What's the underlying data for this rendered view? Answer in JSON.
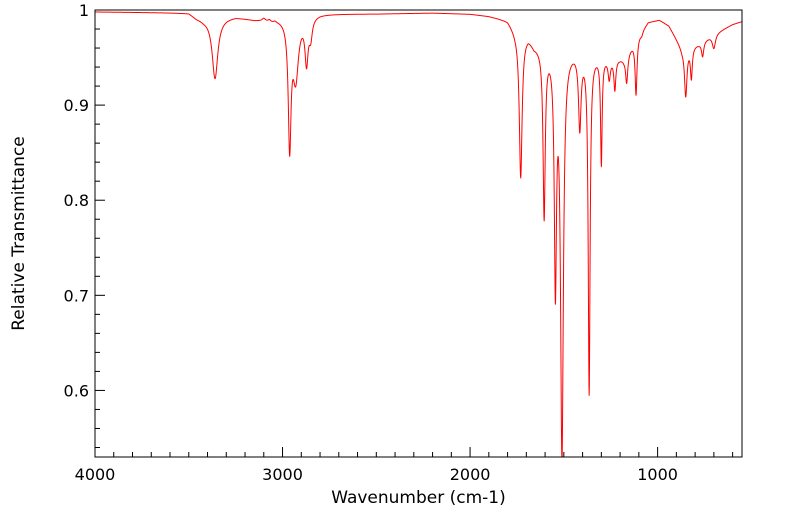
{
  "chart_data": {
    "type": "line",
    "title": "",
    "xlabel": "Wavenumber (cm-1)",
    "ylabel": "Relative Transmittance",
    "xlim": [
      4000,
      550
    ],
    "ylim": [
      0.53,
      1.0
    ],
    "x_reversed": true,
    "grid": false,
    "legend": "none",
    "line_color": "#ff0000",
    "x_ticks": [
      4000,
      3000,
      2000,
      1000
    ],
    "x_tick_labels": [
      "4000",
      "3000",
      "2000",
      "1000"
    ],
    "y_ticks": [
      0.6,
      0.7,
      0.8,
      0.9,
      1.0
    ],
    "y_tick_labels": [
      "0.6",
      "0.7",
      "0.8",
      "0.9",
      "1"
    ],
    "baseline": [
      [
        4000,
        0.998
      ],
      [
        3500,
        0.997
      ],
      [
        3460,
        0.992
      ],
      [
        3420,
        0.99
      ],
      [
        3250,
        0.993
      ],
      [
        3150,
        0.99
      ],
      [
        3060,
        0.99
      ],
      [
        3000,
        0.992
      ],
      [
        2800,
        0.996
      ],
      [
        2500,
        0.996
      ],
      [
        2200,
        0.997
      ],
      [
        2000,
        0.996
      ],
      [
        1900,
        0.994
      ],
      [
        1800,
        0.99
      ],
      [
        1760,
        0.98
      ],
      [
        1690,
        0.975
      ],
      [
        1660,
        0.965
      ],
      [
        1440,
        0.96
      ],
      [
        1250,
        0.95
      ],
      [
        1180,
        0.95
      ],
      [
        1100,
        0.975
      ],
      [
        1050,
        0.988
      ],
      [
        990,
        0.99
      ],
      [
        940,
        0.984
      ],
      [
        870,
        0.96
      ],
      [
        780,
        0.965
      ],
      [
        700,
        0.975
      ],
      [
        600,
        0.985
      ],
      [
        550,
        0.988
      ]
    ],
    "peaks": [
      {
        "x": 3360,
        "y": 0.928,
        "width": 18
      },
      {
        "x": 3100,
        "y": 0.993,
        "width": 10
      },
      {
        "x": 3070,
        "y": 0.992,
        "width": 8
      },
      {
        "x": 3040,
        "y": 0.992,
        "width": 8
      },
      {
        "x": 2962,
        "y": 0.86,
        "width": 9
      },
      {
        "x": 2930,
        "y": 0.93,
        "width": 18
      },
      {
        "x": 2872,
        "y": 0.948,
        "width": 10
      },
      {
        "x": 2850,
        "y": 0.975,
        "width": 10
      },
      {
        "x": 1730,
        "y": 0.825,
        "width": 9
      },
      {
        "x": 1605,
        "y": 0.785,
        "width": 7
      },
      {
        "x": 1545,
        "y": 0.713,
        "width": 7
      },
      {
        "x": 1510,
        "y": 0.53,
        "width": 9
      },
      {
        "x": 1415,
        "y": 0.88,
        "width": 8
      },
      {
        "x": 1365,
        "y": 0.598,
        "width": 6
      },
      {
        "x": 1300,
        "y": 0.84,
        "width": 5
      },
      {
        "x": 1258,
        "y": 0.93,
        "width": 7
      },
      {
        "x": 1228,
        "y": 0.918,
        "width": 6
      },
      {
        "x": 1165,
        "y": 0.925,
        "width": 7
      },
      {
        "x": 1115,
        "y": 0.912,
        "width": 6
      },
      {
        "x": 1085,
        "y": 0.975,
        "width": 8
      },
      {
        "x": 850,
        "y": 0.91,
        "width": 8
      },
      {
        "x": 820,
        "y": 0.93,
        "width": 6
      },
      {
        "x": 760,
        "y": 0.952,
        "width": 7
      },
      {
        "x": 700,
        "y": 0.96,
        "width": 10
      }
    ]
  }
}
